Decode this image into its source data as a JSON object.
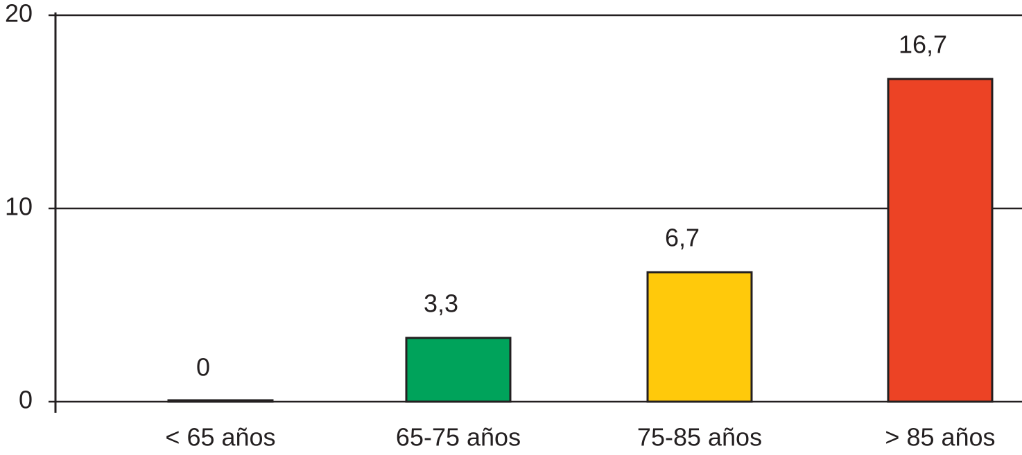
{
  "chart_data": {
    "type": "bar",
    "categories": [
      "< 65 años",
      "65-75 años",
      "75-85 años",
      "> 85 años"
    ],
    "values": [
      0,
      3.3,
      6.7,
      16.7
    ],
    "value_labels": [
      "0",
      "3,3",
      "6,7",
      "16,7"
    ],
    "colors": [
      "#231f20",
      "#00a35b",
      "#ffc90b",
      "#ec4325"
    ],
    "ylim": [
      0,
      20
    ],
    "yticks": [
      0,
      10,
      20
    ],
    "grid": true
  }
}
